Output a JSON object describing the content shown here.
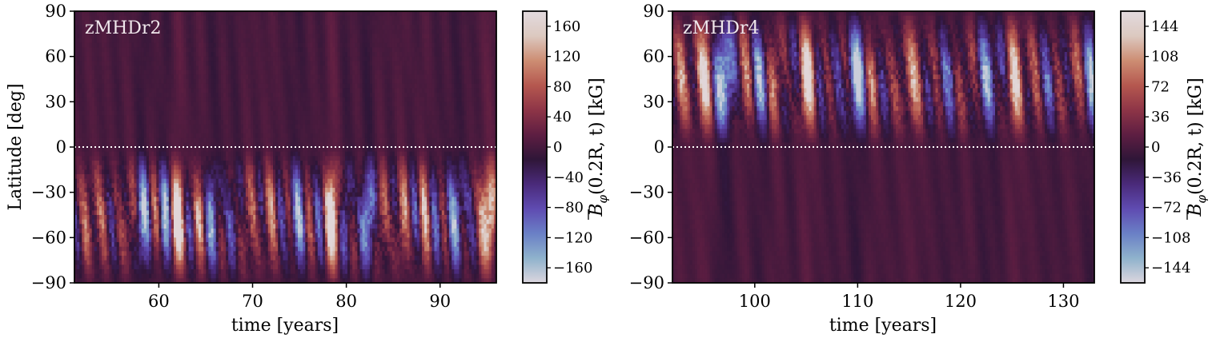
{
  "chart_data": [
    {
      "type": "heatmap",
      "title": "zMHDr2",
      "xlabel": "time [years]",
      "ylabel": "Latitude [deg]",
      "xlim": [
        51,
        96
      ],
      "ylim": [
        -90,
        90
      ],
      "xticks": [
        60,
        70,
        80,
        90
      ],
      "yticks": [
        -90,
        -60,
        -30,
        0,
        30,
        60,
        90
      ],
      "ytick_labels": [
        "−90",
        "−60",
        "−30",
        "0",
        "30",
        "60",
        "90"
      ],
      "equator_line": 0,
      "active_hemisphere": "south",
      "colorbar": {
        "label": "B̄_φ(0.2R, t) [kG]",
        "label_bar": "B",
        "label_sub": "φ",
        "label_rest": "(0.2R, t) [kG]",
        "vmin": -180,
        "vmax": 180,
        "ticks": [
          -160,
          -120,
          -80,
          -40,
          0,
          40,
          80,
          120,
          160
        ],
        "tick_labels": [
          "−160",
          "−120",
          "−80",
          "−40",
          "0",
          "40",
          "80",
          "120",
          "160"
        ]
      }
    },
    {
      "type": "heatmap",
      "title": "zMHDr4",
      "xlabel": "time [years]",
      "ylabel": "",
      "xlim": [
        92,
        133
      ],
      "ylim": [
        -90,
        90
      ],
      "xticks": [
        100,
        110,
        120,
        130
      ],
      "yticks": [
        -90,
        -60,
        -30,
        0,
        30,
        60,
        90
      ],
      "ytick_labels": [
        "−90",
        "−60",
        "−30",
        "0",
        "30",
        "60",
        "90"
      ],
      "equator_line": 0,
      "active_hemisphere": "north",
      "colorbar": {
        "label": "B̄_φ(0.2R, t) [kG]",
        "label_bar": "B",
        "label_sub": "φ",
        "label_rest": "(0.2R, t) [kG]",
        "vmin": -162,
        "vmax": 162,
        "ticks": [
          -144,
          -108,
          -72,
          -36,
          0,
          36,
          72,
          108,
          144
        ],
        "tick_labels": [
          "−144",
          "−108",
          "−72",
          "−36",
          "0",
          "36",
          "72",
          "108",
          "144"
        ]
      }
    }
  ],
  "colormap": {
    "name": "twilight_shifted",
    "stops": [
      "#dcd6de",
      "#8fb2cc",
      "#6a80c6",
      "#5f4bb1",
      "#4a2a7a",
      "#2f1638",
      "#5e1e42",
      "#8e3547",
      "#b5584f",
      "#cd8d73",
      "#dcc9c0",
      "#e2dadf"
    ]
  }
}
